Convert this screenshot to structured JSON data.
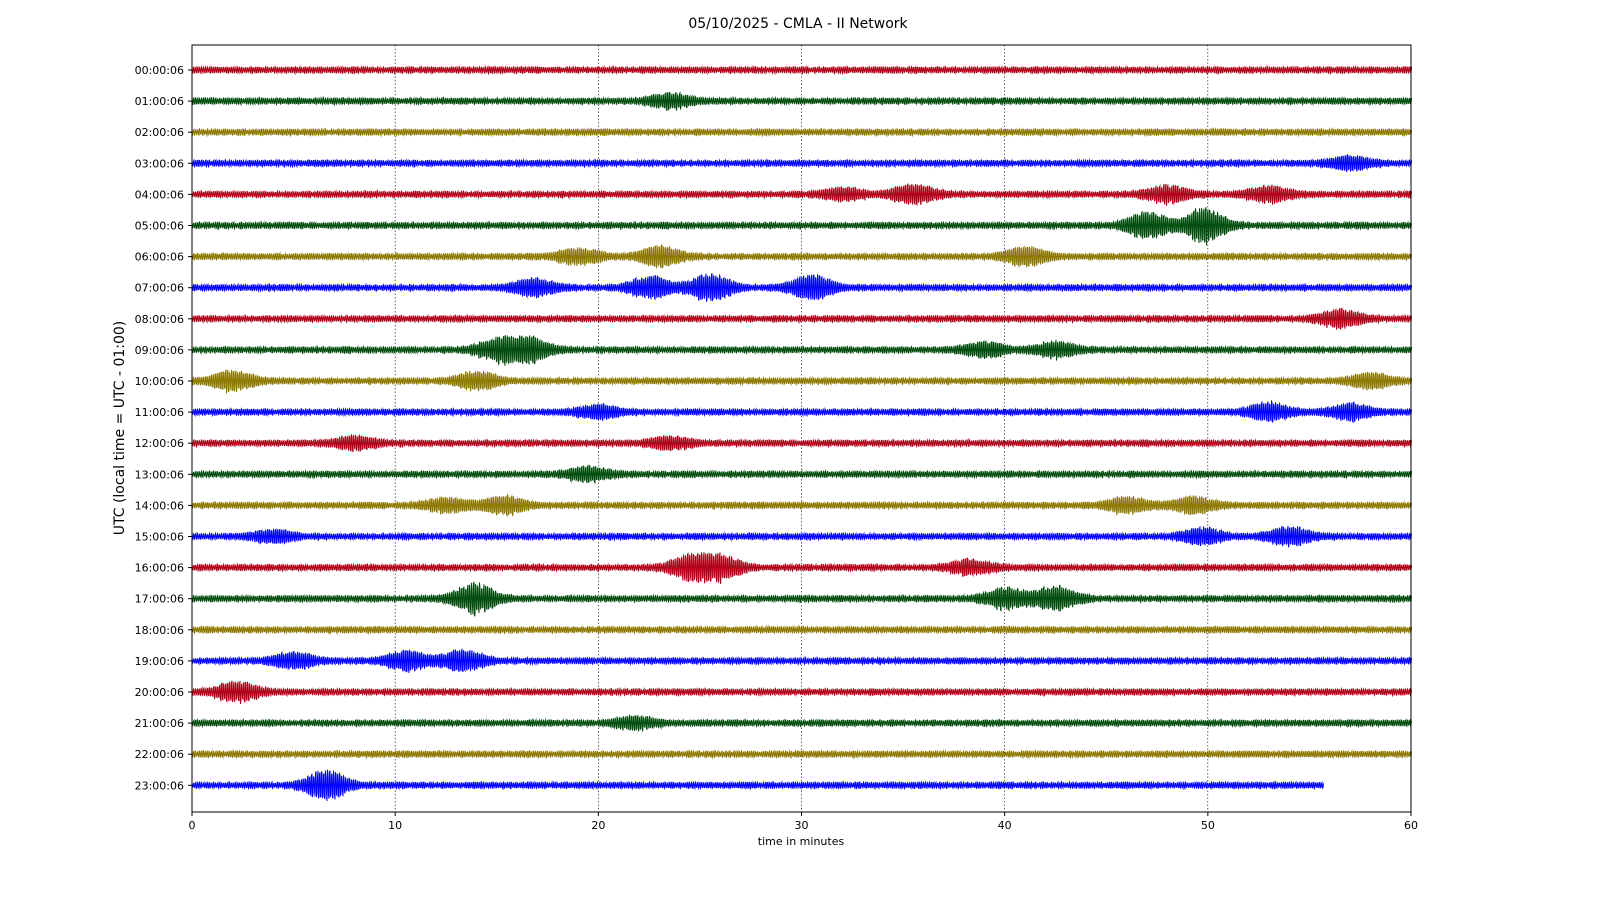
{
  "chart_data": {
    "type": "line",
    "title": "05/10/2025 - CMLA - II Network",
    "xlabel": "time in minutes",
    "ylabel": "UTC (local time = UTC - 01:00)",
    "xlim": [
      0,
      60
    ],
    "x_ticks": [
      "0",
      "10",
      "20",
      "30",
      "40",
      "50",
      "60"
    ],
    "grid_x": true,
    "row_colors": [
      "#b00018",
      "#004c0c",
      "#8c7800",
      "#0000ff"
    ],
    "rows": [
      {
        "label": "00:00:06",
        "end_minute": 60,
        "events": []
      },
      {
        "label": "01:00:06",
        "end_minute": 60,
        "events": [
          {
            "minute": 23.5,
            "amplitude": 1.3
          }
        ]
      },
      {
        "label": "02:00:06",
        "end_minute": 60,
        "events": []
      },
      {
        "label": "03:00:06",
        "end_minute": 60,
        "events": [
          {
            "minute": 57,
            "amplitude": 1.2
          }
        ]
      },
      {
        "label": "04:00:06",
        "end_minute": 60,
        "events": [
          {
            "minute": 32,
            "amplitude": 1.1
          },
          {
            "minute": 35.5,
            "amplitude": 1.8
          },
          {
            "minute": 48,
            "amplitude": 1.5
          },
          {
            "minute": 53,
            "amplitude": 1.4
          }
        ]
      },
      {
        "label": "05:00:06",
        "end_minute": 60,
        "events": [
          {
            "minute": 47,
            "amplitude": 2.4
          },
          {
            "minute": 49.8,
            "amplitude": 3.2
          }
        ]
      },
      {
        "label": "06:00:06",
        "end_minute": 60,
        "events": [
          {
            "minute": 19,
            "amplitude": 1.5
          },
          {
            "minute": 23,
            "amplitude": 1.8
          },
          {
            "minute": 41,
            "amplitude": 1.7
          }
        ]
      },
      {
        "label": "07:00:06",
        "end_minute": 60,
        "events": [
          {
            "minute": 16.8,
            "amplitude": 1.6
          },
          {
            "minute": 22.5,
            "amplitude": 2.0
          },
          {
            "minute": 25.5,
            "amplitude": 2.4
          },
          {
            "minute": 30.5,
            "amplitude": 2.2
          }
        ]
      },
      {
        "label": "08:00:06",
        "end_minute": 60,
        "events": [
          {
            "minute": 56.5,
            "amplitude": 1.6
          }
        ]
      },
      {
        "label": "09:00:06",
        "end_minute": 60,
        "events": [
          {
            "minute": 15,
            "amplitude": 2.0
          },
          {
            "minute": 16.6,
            "amplitude": 2.2
          },
          {
            "minute": 39,
            "amplitude": 1.3
          },
          {
            "minute": 42.5,
            "amplitude": 1.4
          }
        ]
      },
      {
        "label": "10:00:06",
        "end_minute": 60,
        "events": [
          {
            "minute": 2,
            "amplitude": 1.9
          },
          {
            "minute": 14,
            "amplitude": 1.7
          },
          {
            "minute": 58,
            "amplitude": 1.4
          }
        ]
      },
      {
        "label": "11:00:06",
        "end_minute": 60,
        "events": [
          {
            "minute": 20,
            "amplitude": 1.2
          },
          {
            "minute": 53,
            "amplitude": 1.6
          },
          {
            "minute": 57,
            "amplitude": 1.4
          }
        ]
      },
      {
        "label": "12:00:06",
        "end_minute": 60,
        "events": [
          {
            "minute": 8,
            "amplitude": 1.2
          },
          {
            "minute": 23.5,
            "amplitude": 1.1
          }
        ]
      },
      {
        "label": "13:00:06",
        "end_minute": 60,
        "events": [
          {
            "minute": 19.5,
            "amplitude": 1.3
          }
        ]
      },
      {
        "label": "14:00:06",
        "end_minute": 60,
        "events": [
          {
            "minute": 12.5,
            "amplitude": 1.3
          },
          {
            "minute": 15.3,
            "amplitude": 1.6
          },
          {
            "minute": 46,
            "amplitude": 1.4
          },
          {
            "minute": 49.3,
            "amplitude": 1.5
          }
        ]
      },
      {
        "label": "15:00:06",
        "end_minute": 60,
        "events": [
          {
            "minute": 4,
            "amplitude": 1.1
          },
          {
            "minute": 49.7,
            "amplitude": 1.4
          },
          {
            "minute": 54,
            "amplitude": 1.7
          }
        ]
      },
      {
        "label": "16:00:06",
        "end_minute": 60,
        "events": [
          {
            "minute": 24.5,
            "amplitude": 2.1
          },
          {
            "minute": 26,
            "amplitude": 2.2
          },
          {
            "minute": 38.3,
            "amplitude": 1.4
          }
        ]
      },
      {
        "label": "17:00:06",
        "end_minute": 60,
        "events": [
          {
            "minute": 13.9,
            "amplitude": 2.8
          },
          {
            "minute": 40,
            "amplitude": 2.0
          },
          {
            "minute": 42.5,
            "amplitude": 2.3
          }
        ]
      },
      {
        "label": "18:00:06",
        "end_minute": 60,
        "events": []
      },
      {
        "label": "19:00:06",
        "end_minute": 60,
        "events": [
          {
            "minute": 5,
            "amplitude": 1.4
          },
          {
            "minute": 10.5,
            "amplitude": 1.8
          },
          {
            "minute": 13.3,
            "amplitude": 2.0
          }
        ]
      },
      {
        "label": "20:00:06",
        "end_minute": 60,
        "events": [
          {
            "minute": 2.2,
            "amplitude": 1.8
          }
        ]
      },
      {
        "label": "21:00:06",
        "end_minute": 60,
        "events": [
          {
            "minute": 21.8,
            "amplitude": 1.1
          }
        ]
      },
      {
        "label": "22:00:06",
        "end_minute": 60,
        "events": []
      },
      {
        "label": "23:00:06",
        "end_minute": 55.7,
        "events": [
          {
            "minute": 6.6,
            "amplitude": 2.6
          }
        ]
      }
    ]
  }
}
